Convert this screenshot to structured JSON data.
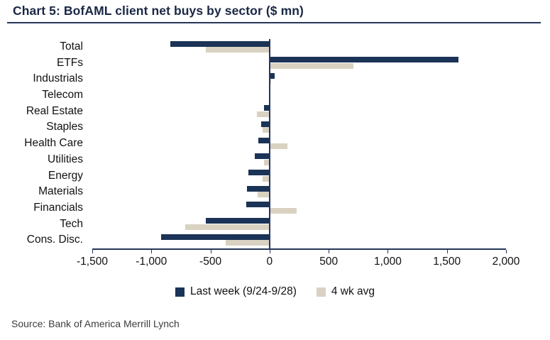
{
  "title": "Chart 5: BofAML client net buys by sector ($ mn)",
  "source": "Source:  Bank of America Merrill Lynch",
  "legend": [
    {
      "label": "Last week (9/24-9/28)",
      "color": "#1b3356"
    },
    {
      "label": "4 wk avg",
      "color": "#d9d2c2"
    }
  ],
  "colors": {
    "axis": "#26365a",
    "last_week_bar": "#1b3356",
    "four_wk_avg_bar": "#d9d2c2"
  },
  "chart_data": {
    "type": "bar",
    "orientation": "horizontal",
    "title": "Chart 5: BofAML client net buys by sector ($ mn)",
    "categories": [
      "Total",
      "ETFs",
      "Industrials",
      "Telecom",
      "Real Estate",
      "Staples",
      "Health Care",
      "Utilities",
      "Energy",
      "Materials",
      "Financials",
      "Tech",
      "Cons. Disc."
    ],
    "series": [
      {
        "name": "Last week (9/24-9/28)",
        "color": "#1b3356",
        "values": [
          -840,
          1600,
          40,
          5,
          -50,
          -70,
          -95,
          -125,
          -180,
          -190,
          -200,
          -540,
          -920
        ]
      },
      {
        "name": "4 wk avg",
        "color": "#d9d2c2",
        "values": [
          -540,
          710,
          15,
          5,
          -110,
          -60,
          150,
          -45,
          -60,
          -100,
          230,
          -715,
          -370
        ]
      }
    ],
    "xlim": [
      -1500,
      2000
    ],
    "xticks": [
      -1500,
      -1000,
      -500,
      0,
      500,
      1000,
      1500,
      2000
    ],
    "xtick_labels": [
      "-1,500",
      "-1,000",
      "-500",
      "0",
      "500",
      "1,000",
      "1,500",
      "2,000"
    ],
    "grid": false,
    "legend_position": "bottom"
  }
}
